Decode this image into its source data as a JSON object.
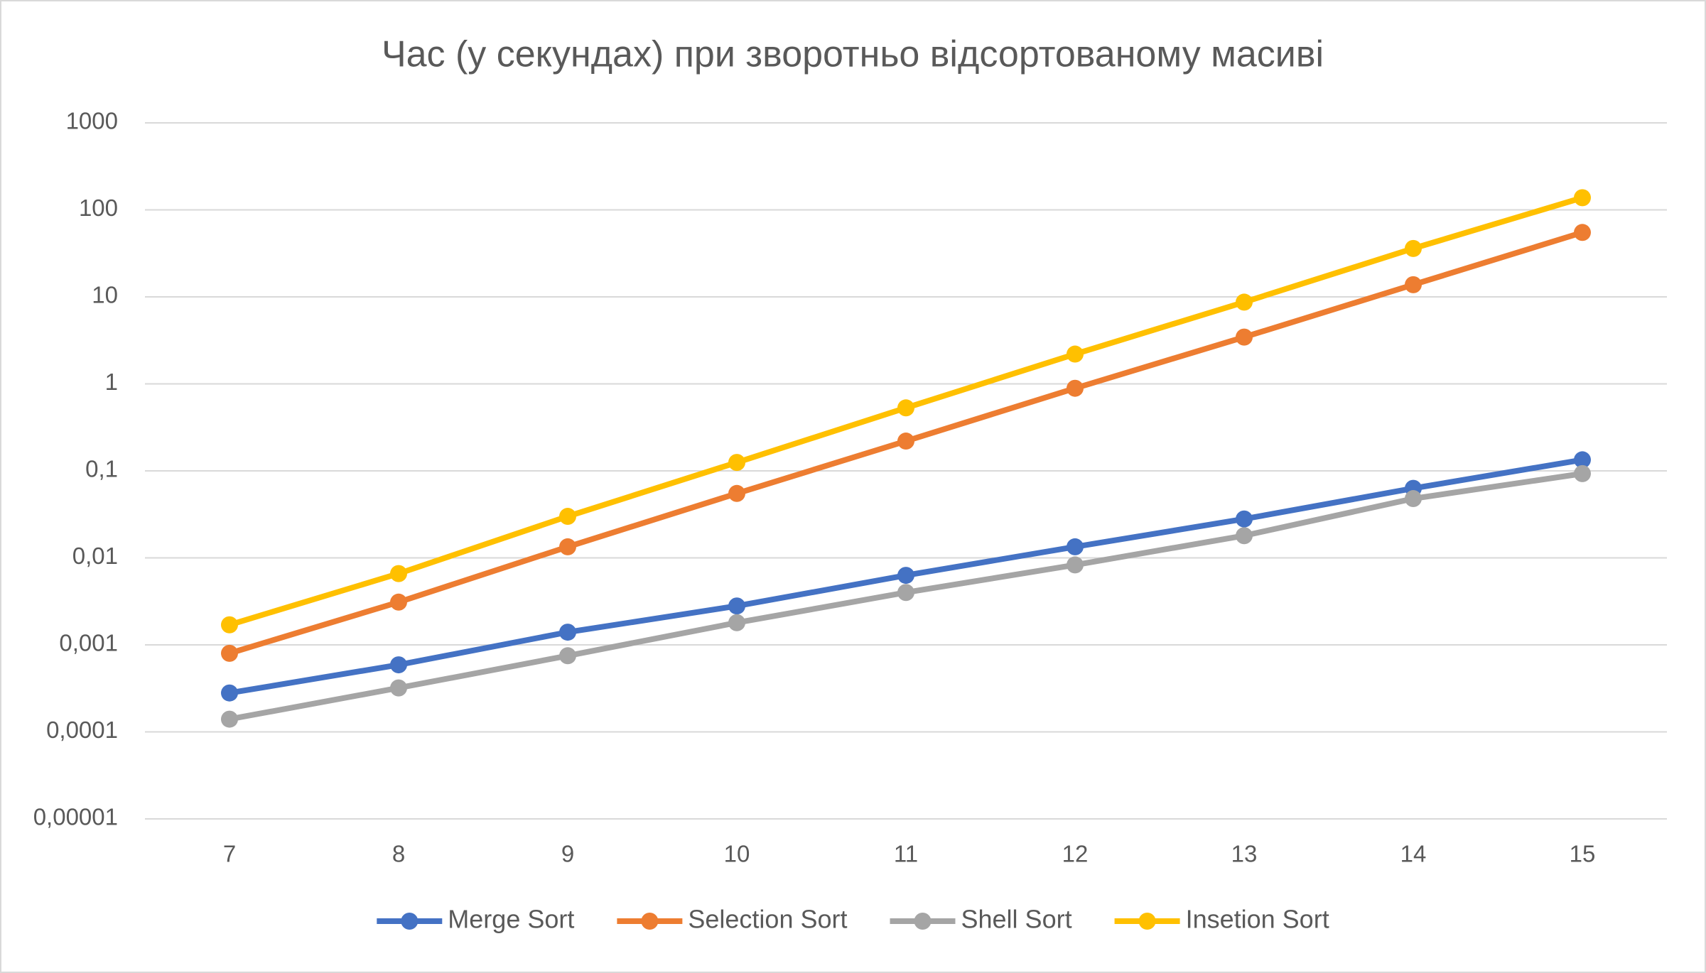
{
  "chart_data": {
    "type": "line",
    "title": "Час (у секундах) при зворотньо відсортованому масиві",
    "categories": [
      "7",
      "8",
      "9",
      "10",
      "11",
      "12",
      "13",
      "14",
      "15"
    ],
    "series": [
      {
        "name": "Merge Sort",
        "color": "#4472c4",
        "values": [
          0.00028,
          0.00059,
          0.0014,
          0.0028,
          0.0063,
          0.0134,
          0.028,
          0.063,
          0.134
        ]
      },
      {
        "name": "Selection Sort",
        "color": "#ed7d31",
        "values": [
          0.0008,
          0.0031,
          0.0134,
          0.055,
          0.22,
          0.89,
          3.45,
          13.8,
          55
        ]
      },
      {
        "name": "Shell Sort",
        "color": "#a5a5a5",
        "values": [
          0.00014,
          0.00032,
          0.00075,
          0.0018,
          0.004,
          0.0083,
          0.018,
          0.048,
          0.093
        ]
      },
      {
        "name": "Insetion Sort",
        "color": "#ffc000",
        "values": [
          0.0017,
          0.0066,
          0.03,
          0.125,
          0.53,
          2.2,
          8.7,
          36,
          138
        ]
      }
    ],
    "ylim": [
      1e-05,
      1000
    ],
    "yticks": [
      {
        "value": 1e-05,
        "label": "0,00001"
      },
      {
        "value": 0.0001,
        "label": "0,0001"
      },
      {
        "value": 0.001,
        "label": "0,001"
      },
      {
        "value": 0.01,
        "label": "0,01"
      },
      {
        "value": 0.1,
        "label": "0,1"
      },
      1,
      10,
      100,
      1000
    ],
    "log_scale": true,
    "grid": true,
    "legend": "bottom"
  }
}
